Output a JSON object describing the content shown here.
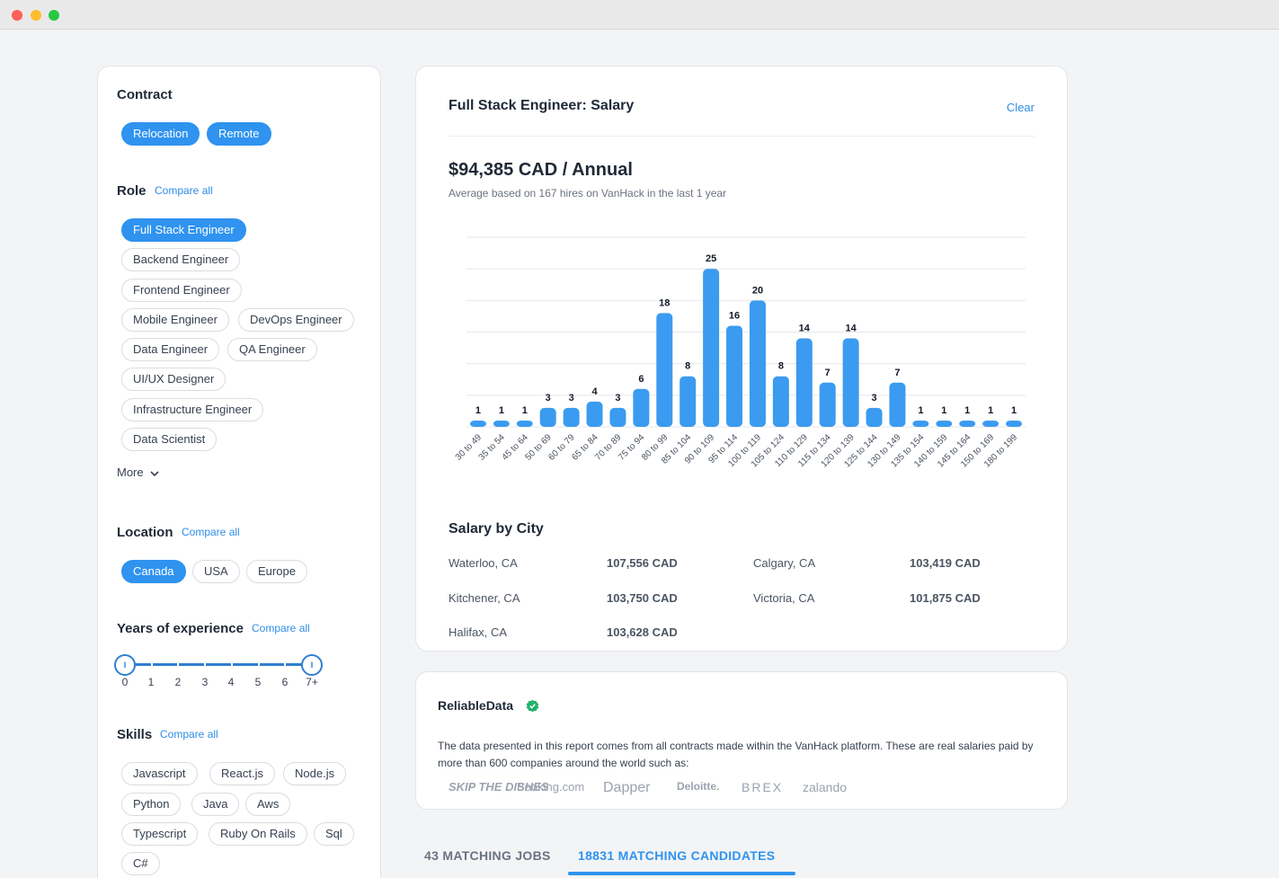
{
  "filters": {
    "contract": {
      "title": "Contract",
      "chips": [
        {
          "label": "Relocation",
          "active": true
        },
        {
          "label": "Remote",
          "active": true
        }
      ]
    },
    "role": {
      "title": "Role",
      "compare": "Compare all",
      "chips": [
        {
          "label": "Full Stack Engineer",
          "active": true
        },
        {
          "label": "Backend Engineer",
          "active": false
        },
        {
          "label": "Frontend Engineer",
          "active": false
        },
        {
          "label": "Mobile Engineer",
          "active": false
        },
        {
          "label": "DevOps Engineer",
          "active": false
        },
        {
          "label": "Data Engineer",
          "active": false
        },
        {
          "label": "QA Engineer",
          "active": false
        },
        {
          "label": "UI/UX Designer",
          "active": false
        },
        {
          "label": "Infrastructure Engineer",
          "active": false
        },
        {
          "label": "Data Scientist",
          "active": false
        }
      ],
      "more": "More"
    },
    "location": {
      "title": "Location",
      "compare": "Compare all",
      "chips": [
        {
          "label": "Canada",
          "active": true
        },
        {
          "label": "USA",
          "active": false
        },
        {
          "label": "Europe",
          "active": false
        }
      ]
    },
    "experience": {
      "title": "Years of experience",
      "compare": "Compare all",
      "labels": [
        "0",
        "1",
        "2",
        "3",
        "4",
        "5",
        "6",
        "7+"
      ],
      "range": [
        0,
        7
      ]
    },
    "skills": {
      "title": "Skills",
      "compare": "Compare all",
      "chips": [
        {
          "label": "Javascript",
          "active": false
        },
        {
          "label": "React.js",
          "active": false
        },
        {
          "label": "Node.js",
          "active": false
        },
        {
          "label": "Python",
          "active": false
        },
        {
          "label": "Java",
          "active": false
        },
        {
          "label": "Aws",
          "active": false
        },
        {
          "label": "Typescript",
          "active": false
        },
        {
          "label": "Ruby On Rails",
          "active": false
        },
        {
          "label": "Sql",
          "active": false
        },
        {
          "label": "C#",
          "active": false
        }
      ]
    }
  },
  "salary": {
    "title": "Full Stack Engineer: Salary",
    "clear": "Clear",
    "amount": "$94,385 CAD / Annual",
    "subtitle": "Average based on 167 hires on VanHack in the last 1 year"
  },
  "chart_data": {
    "type": "bar",
    "categories": [
      "30 to 49",
      "35 to 54",
      "45 to 64",
      "50 to 69",
      "60 to 79",
      "65 to 84",
      "70 to 89",
      "75 to 94",
      "80 to 99",
      "85 to 104",
      "90 to 109",
      "95 to 114",
      "100 to 119",
      "105 to 124",
      "110 to 129",
      "115 to 134",
      "120 to 139",
      "125 to 144",
      "130 to 149",
      "135 to 154",
      "140 to 159",
      "145 to 164",
      "150 to 169",
      "180 to 199"
    ],
    "values": [
      1,
      1,
      1,
      3,
      3,
      4,
      3,
      6,
      18,
      8,
      25,
      16,
      20,
      8,
      14,
      7,
      14,
      3,
      7,
      1,
      1,
      1,
      1,
      1
    ],
    "ylim": [
      0,
      30
    ],
    "grid": true,
    "color": "#3b9bf0"
  },
  "cities": {
    "title": "Salary by City",
    "items": [
      {
        "name": "Waterloo, CA",
        "value": "107,556 CAD"
      },
      {
        "name": "Calgary, CA",
        "value": "103,419 CAD"
      },
      {
        "name": "Kitchener, CA",
        "value": "103,750 CAD"
      },
      {
        "name": "Victoria, CA",
        "value": "101,875 CAD"
      },
      {
        "name": "Halifax, CA",
        "value": "103,628 CAD"
      }
    ]
  },
  "reliable": {
    "title": "ReliableData",
    "text": "The data presented in this report comes from all contracts made within the VanHack platform. These are real salaries paid by more than 600 companies around the world such as:",
    "logos": [
      "SKIP THE DISHES",
      "Booking.com",
      "Dapper",
      "Deloitte.",
      "BREX",
      "zalando"
    ]
  },
  "tabs": {
    "jobs": "43 MATCHING JOBS",
    "candidates": "18831 MATCHING CANDIDATES"
  }
}
